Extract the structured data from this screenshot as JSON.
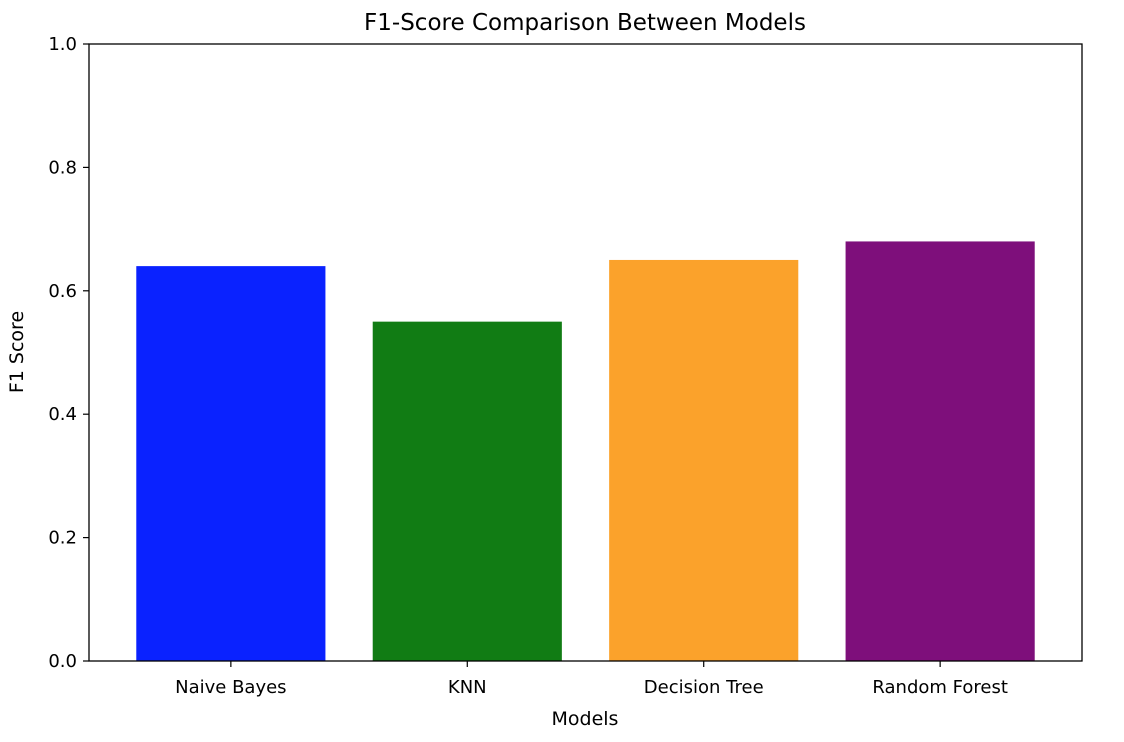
{
  "chart_data": {
    "type": "bar",
    "title": "F1-Score Comparison Between Models",
    "xlabel": "Models",
    "ylabel": "F1 Score",
    "categories": [
      "Naive Bayes",
      "KNN",
      "Decision Tree",
      "Random Forest"
    ],
    "values": [
      0.64,
      0.55,
      0.65,
      0.68
    ],
    "colors": [
      "#0a22ff",
      "#117c14",
      "#fba22b",
      "#7e0f7b"
    ],
    "ylim": [
      0,
      1.0
    ],
    "yticks": [
      0.0,
      0.2,
      0.4,
      0.6,
      0.8,
      1.0
    ],
    "ytick_labels": [
      "0.0",
      "0.2",
      "0.4",
      "0.6",
      "0.8",
      "1.0"
    ],
    "grid": false,
    "legend": "none"
  }
}
